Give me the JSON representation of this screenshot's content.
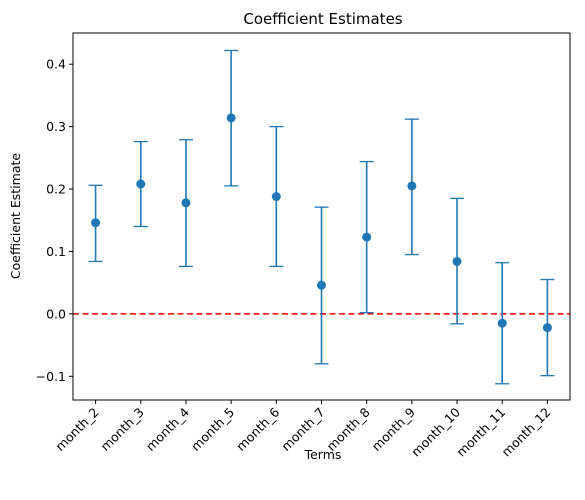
{
  "chart_data": {
    "type": "scatter",
    "title": "Coefficient Estimates",
    "xlabel": "Terms",
    "ylabel": "Coefficient Estimate",
    "categories": [
      "month_2",
      "month_3",
      "month_4",
      "month_5",
      "month_6",
      "month_7",
      "month_8",
      "month_9",
      "month_10",
      "month_11",
      "month_12"
    ],
    "estimates": [
      0.146,
      0.208,
      0.178,
      0.314,
      0.188,
      0.046,
      0.123,
      0.205,
      0.084,
      -0.015,
      -0.022
    ],
    "lower": [
      0.084,
      0.14,
      0.076,
      0.205,
      0.076,
      -0.08,
      0.002,
      0.095,
      -0.016,
      -0.112,
      -0.099
    ],
    "upper": [
      0.206,
      0.276,
      0.279,
      0.422,
      0.3,
      0.171,
      0.244,
      0.312,
      0.185,
      0.082,
      0.055
    ],
    "ylim": [
      -0.138,
      0.45
    ],
    "yticks": [
      -0.1,
      0.0,
      0.1,
      0.2,
      0.3,
      0.4
    ],
    "ytick_labels": [
      "−0.1",
      "0.0",
      "0.1",
      "0.2",
      "0.3",
      "0.4"
    ],
    "reference_line": {
      "y": 0.0,
      "style": "dashed",
      "color": "#ff0000"
    },
    "point_color": "#1f77b4",
    "grid": false,
    "legend": null
  }
}
